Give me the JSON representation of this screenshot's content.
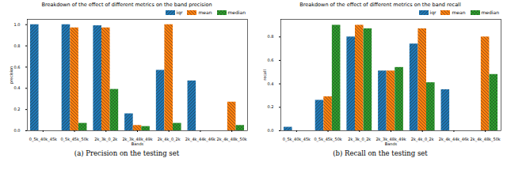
{
  "chart_data": [
    {
      "type": "bar",
      "title": "Breakdown of the effect of different metrics on the band precision",
      "caption": "(a) Precision on the testing set",
      "x_label": "Bands",
      "y_label": "precision",
      "categories": [
        "0_5k_40k_45k",
        "0_5k_45k_50k",
        "2k_3k_0_2k",
        "2k_3k_48k_49k",
        "2k_4k_0_2k",
        "2k_4k_44k_46k",
        "2k_4k_48k_50k"
      ],
      "series": [
        {
          "name": "iqr",
          "color": "#1f77b4",
          "values": [
            1.0,
            1.0,
            0.99,
            0.16,
            0.57,
            0.47,
            0
          ]
        },
        {
          "name": "mean",
          "color": "#ff7f0e",
          "values": [
            0,
            0.97,
            0.97,
            0.05,
            1.0,
            0,
            0.27
          ]
        },
        {
          "name": "median",
          "color": "#2ca02c",
          "values": [
            0,
            0.07,
            0.39,
            0.04,
            0.07,
            0,
            0.05
          ]
        }
      ],
      "ylim": [
        0,
        1.05
      ],
      "yticks": [
        {
          "value": 0,
          "label": "0.0"
        },
        {
          "value": 0.2,
          "label": "0.2"
        },
        {
          "value": 0.4,
          "label": "0.4"
        },
        {
          "value": 0.6,
          "label": "0.6"
        },
        {
          "value": 0.8,
          "label": "0.8"
        },
        {
          "value": 1,
          "label": "1.0"
        }
      ],
      "legend": "upper right"
    },
    {
      "type": "bar",
      "title": "Breakdown of the effect of different metrics on the band recall",
      "caption": "(b) Recall on the testing set",
      "x_label": "Bands",
      "y_label": "recall",
      "categories": [
        "0_5k_40k_45k",
        "0_5k_45k_50k",
        "2k_3k_0_2k",
        "2k_3k_48k_49k",
        "2k_4k_0_2k",
        "2k_4k_44k_46k",
        "2k_4k_48k_50k"
      ],
      "series": [
        {
          "name": "iqr",
          "color": "#1f77b4",
          "values": [
            0.03,
            0.26,
            0.8,
            0.51,
            0.74,
            0.35,
            0
          ]
        },
        {
          "name": "mean",
          "color": "#ff7f0e",
          "values": [
            0,
            0.29,
            0.9,
            0.51,
            0.87,
            0,
            0.8
          ]
        },
        {
          "name": "median",
          "color": "#2ca02c",
          "values": [
            0,
            0.9,
            0.87,
            0.54,
            0.41,
            0,
            0.48
          ]
        }
      ],
      "ylim": [
        0,
        0.95
      ],
      "yticks": [
        {
          "value": 0,
          "label": "0.0"
        },
        {
          "value": 0.2,
          "label": "0.2"
        },
        {
          "value": 0.4,
          "label": "0.4"
        },
        {
          "value": 0.6,
          "label": "0.6"
        },
        {
          "value": 0.8,
          "label": "0.8"
        }
      ],
      "legend": "upper right"
    }
  ]
}
